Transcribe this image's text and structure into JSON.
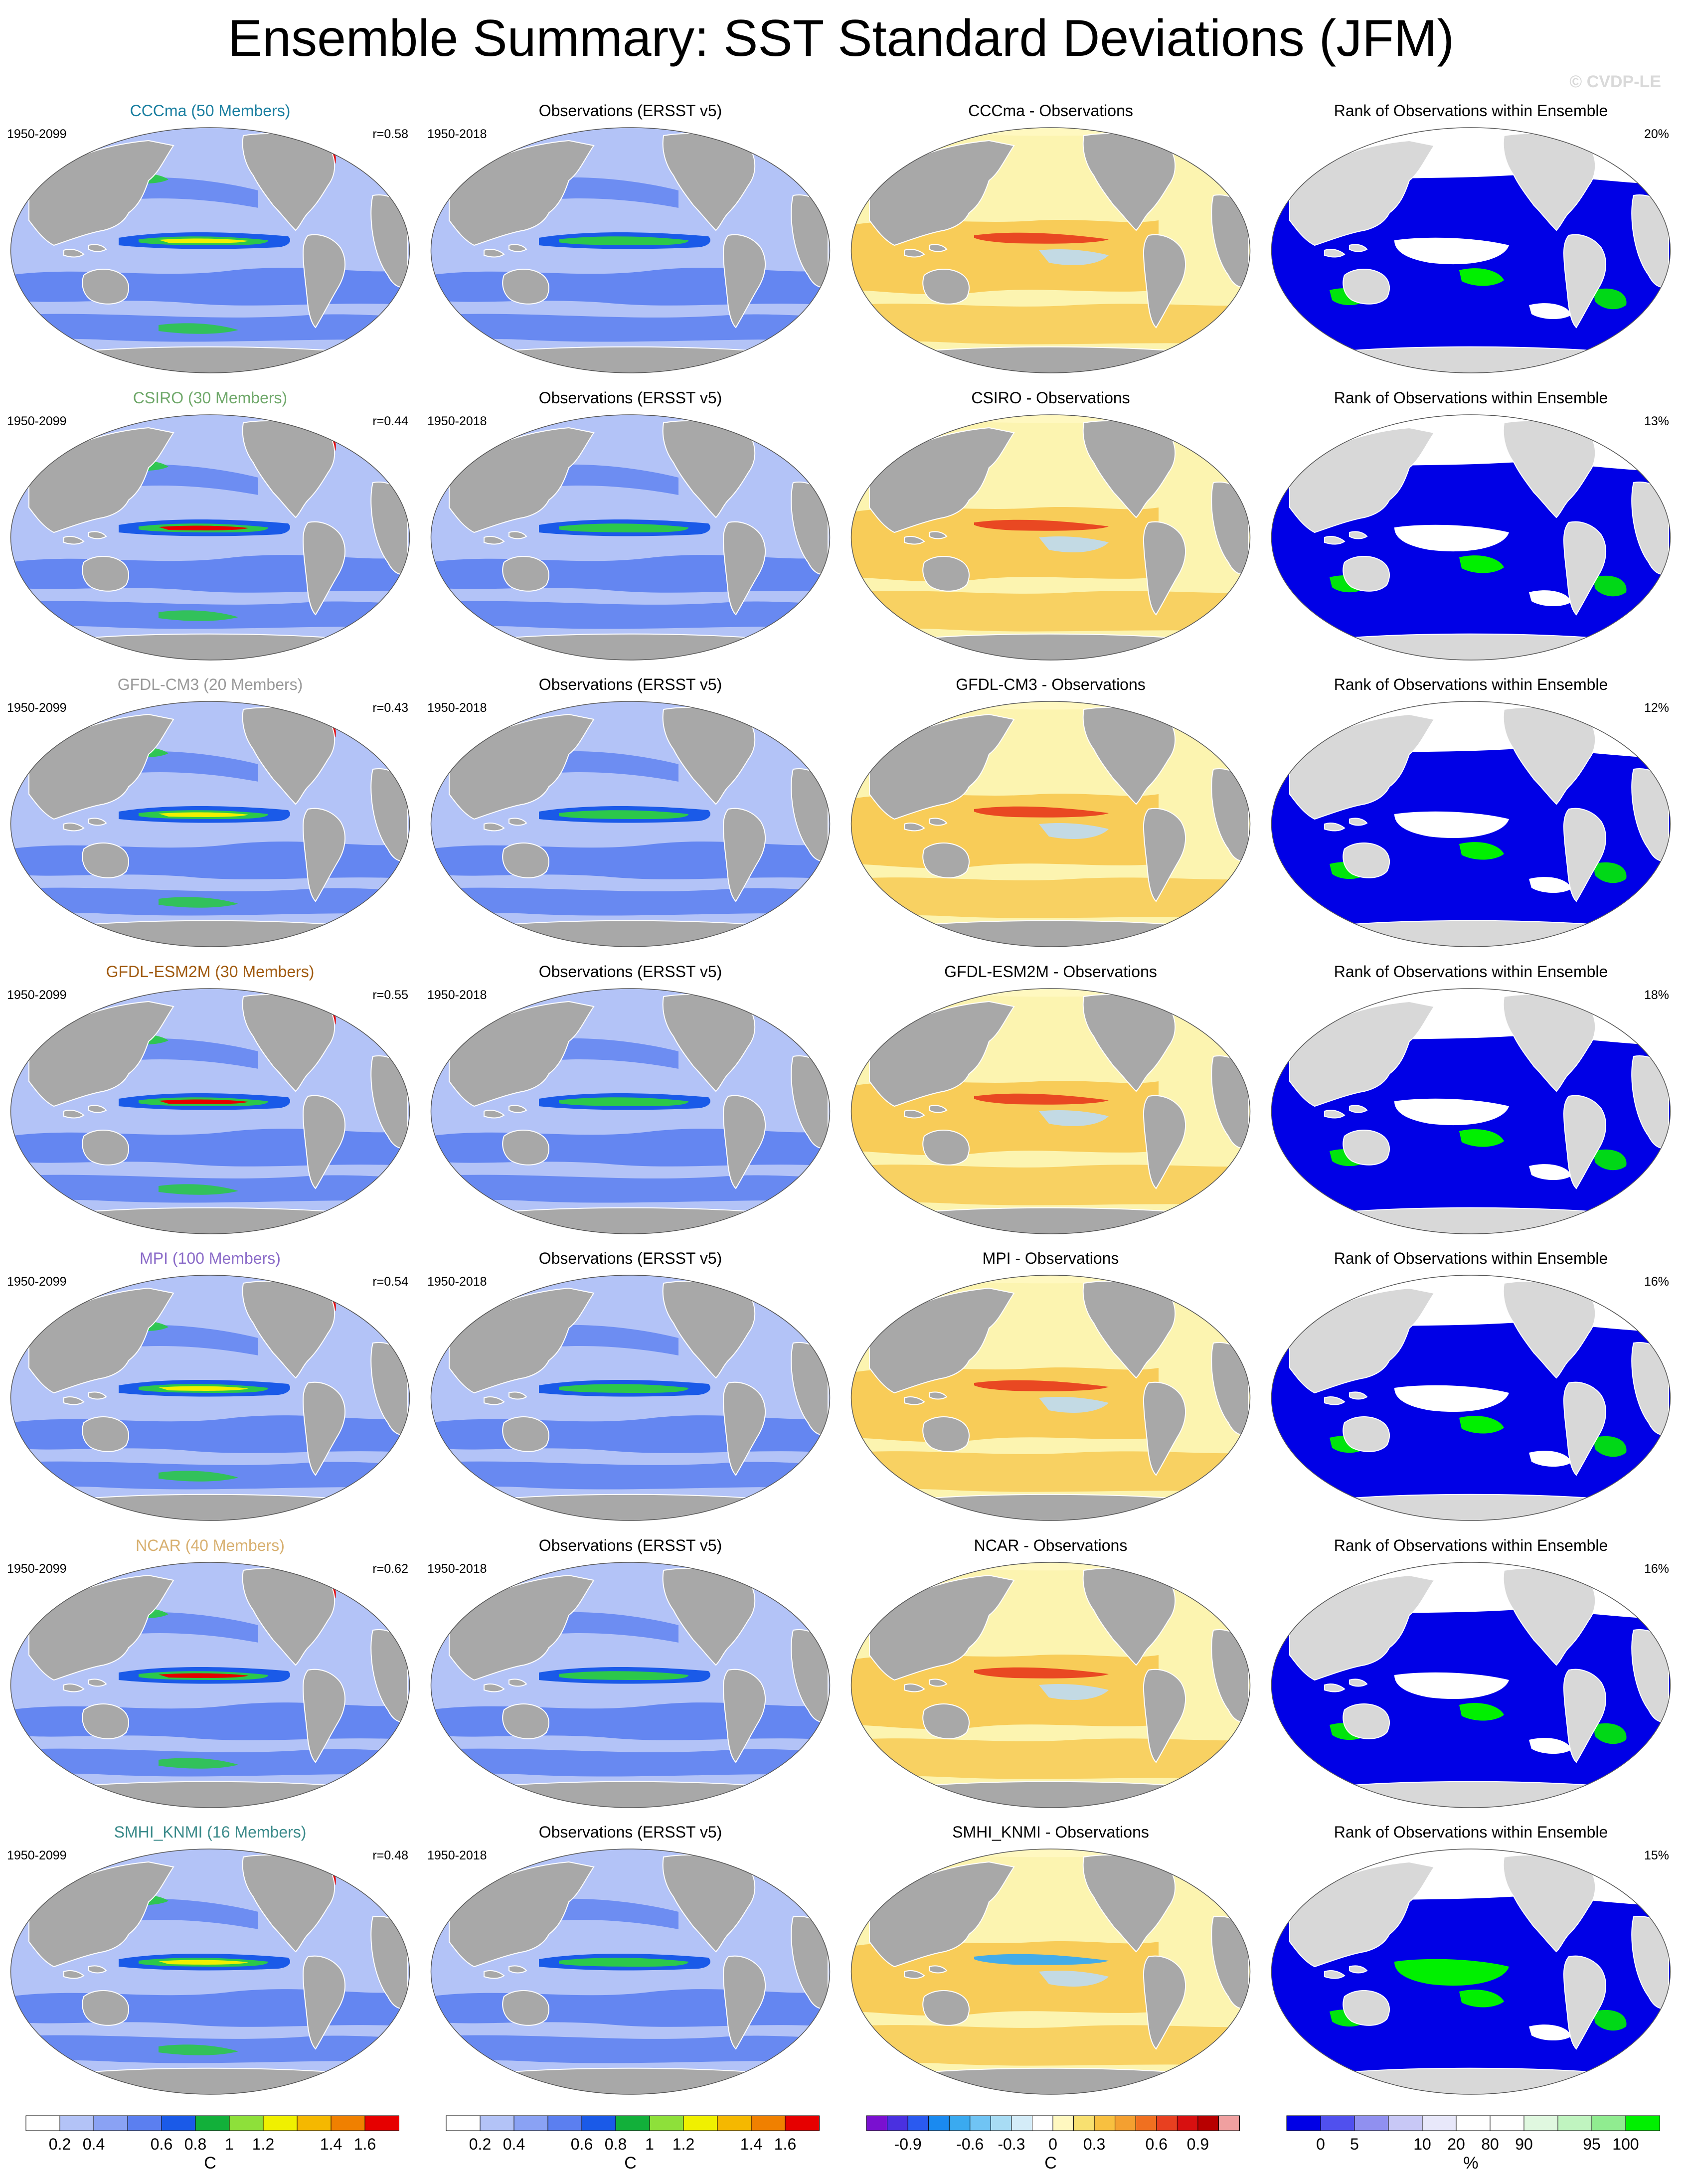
{
  "title": "Ensemble Summary: SST Standard Deviations (JFM)",
  "watermark": "© CVDP-LE",
  "colors": {
    "land": "#a8a8a8",
    "land_light": "#d8d8d8",
    "ocean_low": "#b3c3f7",
    "ocean_mid": "#5b7ff0",
    "ocean_high": "#1a5ae8",
    "green": "#2cc84a",
    "yellow": "#f0f000",
    "red": "#e60000",
    "rank_blue": "#0000e6",
    "rank_green": "#00f000",
    "diff_warm": "#f6c242",
    "diff_pale": "#fcf4b0",
    "diff_cool": "#bcdcf4"
  },
  "column_labels": {
    "obs_title": "Observations (ERSST v5)",
    "rank_title": "Rank of Observations within Ensemble",
    "model_period": "1950-2099",
    "obs_period": "1950-2018"
  },
  "rows": [
    {
      "model": "CCCma (50 Members)",
      "color": "#1a7fa0",
      "corr": "r=0.58",
      "diff": "CCCma - Observations",
      "rank": "20%"
    },
    {
      "model": "CSIRO (30 Members)",
      "color": "#6fa86a",
      "corr": "r=0.44",
      "diff": "CSIRO - Observations",
      "rank": "13%"
    },
    {
      "model": "GFDL-CM3 (20 Members)",
      "color": "#9a9a9a",
      "corr": "r=0.43",
      "diff": "GFDL-CM3 - Observations",
      "rank": "12%"
    },
    {
      "model": "GFDL-ESM2M (30 Members)",
      "color": "#a05a10",
      "corr": "r=0.55",
      "diff": "GFDL-ESM2M - Observations",
      "rank": "18%"
    },
    {
      "model": "MPI (100 Members)",
      "color": "#8a6ac8",
      "corr": "r=0.54",
      "diff": "MPI - Observations",
      "rank": "16%"
    },
    {
      "model": "NCAR (40 Members)",
      "color": "#d8b070",
      "corr": "r=0.62",
      "diff": "NCAR - Observations",
      "rank": "16%"
    },
    {
      "model": "SMHI_KNMI (16 Members)",
      "color": "#3a8a8a",
      "corr": "r=0.48",
      "diff": "SMHI_KNMI - Observations",
      "rank": "15%"
    }
  ],
  "colorbars": [
    {
      "id": "sd1",
      "unit": "C",
      "labels": [
        "0.2",
        "0.4",
        "0.6",
        "0.8",
        "1",
        "1.2",
        "1.4",
        "1.6"
      ],
      "colors": [
        "#ffffff",
        "#b3c3f7",
        "#8aa2f4",
        "#5b7ff0",
        "#1a5ae8",
        "#12b03a",
        "#8ee03a",
        "#f0f000",
        "#f5b800",
        "#f08000",
        "#e60000"
      ]
    },
    {
      "id": "sd2",
      "unit": "C",
      "labels": [
        "0.2",
        "0.4",
        "0.6",
        "0.8",
        "1",
        "1.2",
        "1.4",
        "1.6"
      ],
      "colors": [
        "#ffffff",
        "#b3c3f7",
        "#8aa2f4",
        "#5b7ff0",
        "#1a5ae8",
        "#12b03a",
        "#8ee03a",
        "#f0f000",
        "#f5b800",
        "#f08000",
        "#e60000"
      ]
    },
    {
      "id": "diff",
      "unit": "C",
      "labels": [
        "-0.9",
        "-0.6",
        "-0.3",
        "0",
        "0.3",
        "0.6",
        "0.9"
      ],
      "colors": [
        "#7a10d0",
        "#4a30e0",
        "#2a5af0",
        "#1a8af0",
        "#3aaaf0",
        "#70c4f4",
        "#a8dcf4",
        "#d4ecf8",
        "#ffffff",
        "#fff8c0",
        "#f8e070",
        "#f8c040",
        "#f4a030",
        "#f07020",
        "#e84020",
        "#d81010",
        "#b80000",
        "#f0a0a0"
      ]
    },
    {
      "id": "rank",
      "unit": "%",
      "labels": [
        "0",
        "5",
        "10",
        "20",
        "80",
        "90",
        "95",
        "100"
      ],
      "colors": [
        "#0000e6",
        "#5050ee",
        "#9090f0",
        "#c8c8f6",
        "#e8e8fa",
        "#ffffff",
        "#ffffff",
        "#e0f8e0",
        "#c0f4c0",
        "#90ec90",
        "#00f000"
      ]
    }
  ]
}
